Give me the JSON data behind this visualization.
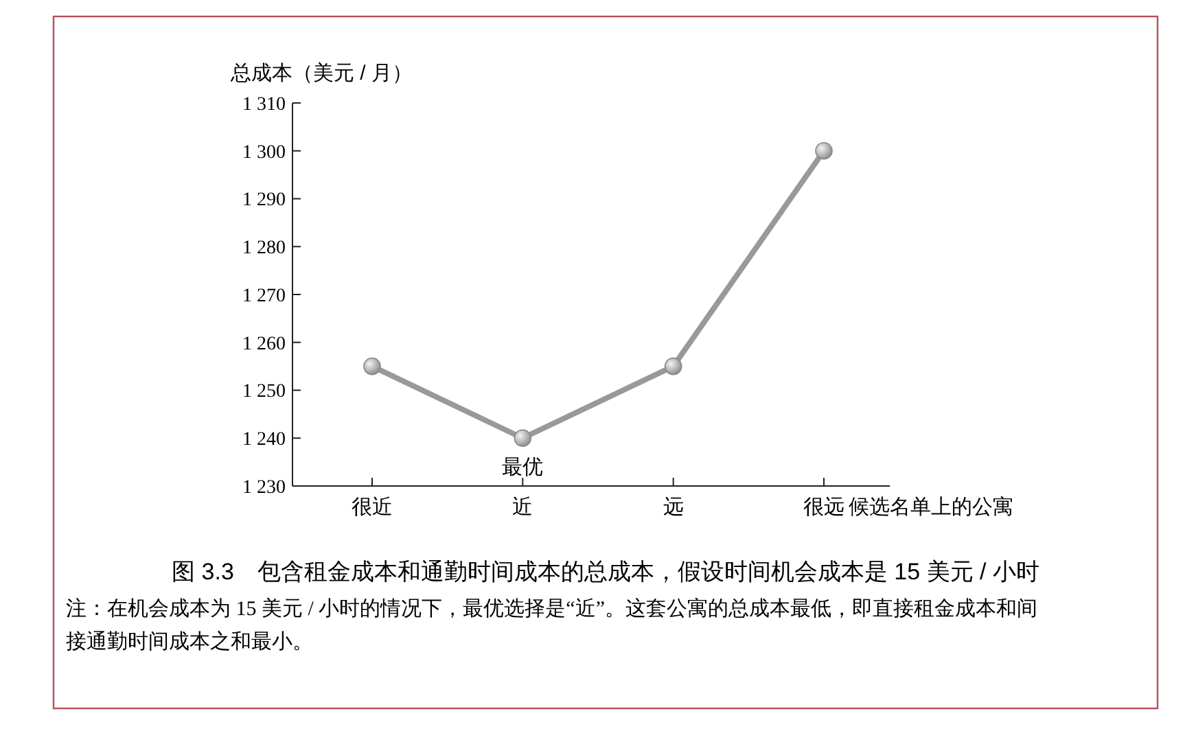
{
  "chart_data": {
    "type": "line",
    "title": "图 3.3　包含租金成本和通勤时间成本的总成本，假设时间机会成本是 15 美元 / 小时",
    "ylabel": "总成本（美元 / 月）",
    "xlabel": "候选名单上的公寓",
    "categories": [
      "很近",
      "近",
      "远",
      "很远"
    ],
    "series": [
      {
        "color": "#999999",
        "values": [
          1255,
          1240,
          1255,
          1300
        ]
      }
    ],
    "ylim": [
      1230,
      1310
    ],
    "yticks": [
      {
        "value": 1230,
        "label": "1 230"
      },
      {
        "value": 1240,
        "label": "1 240"
      },
      {
        "value": 1250,
        "label": "1 250"
      },
      {
        "value": 1260,
        "label": "1 260"
      },
      {
        "value": 1270,
        "label": "1 270"
      },
      {
        "value": 1280,
        "label": "1 280"
      },
      {
        "value": 1290,
        "label": "1 290"
      },
      {
        "value": 1300,
        "label": "1 300"
      },
      {
        "value": 1310,
        "label": "1 310"
      }
    ],
    "marker": "circle",
    "line_style": "solid",
    "grid": false,
    "annotations": [
      {
        "text": "最优",
        "x": "近",
        "y": 1240
      },
      "注：在机会成本为 15 美元 / 小时的情况下，最优选择是“近”。这套公寓的总成本最低，即直接租金成本和间接通勤时间成本之和最小。"
    ]
  }
}
